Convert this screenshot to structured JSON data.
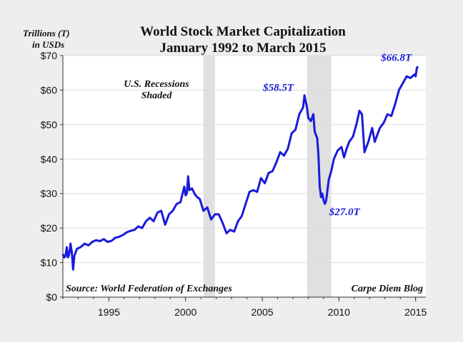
{
  "chart_data": {
    "type": "line",
    "title": "World Stock Market Capitalization",
    "subtitle": "January 1992 to March 2015",
    "ylabel_line1": "Trillions (T)",
    "ylabel_line2": "in USDs",
    "xlabel": "",
    "xlim": [
      "1992-01",
      "2015-09"
    ],
    "ylim": [
      0,
      70
    ],
    "y_ticks": [
      0,
      10,
      20,
      30,
      40,
      50,
      60,
      70
    ],
    "y_tick_labels": [
      "$0",
      "$10",
      "$20",
      "$30",
      "$40",
      "$50",
      "$60",
      "$70"
    ],
    "x_ticks": [
      1995,
      2000,
      2005,
      2010,
      2015
    ],
    "x_tick_labels": [
      "1995",
      "2000",
      "2005",
      "2010",
      "2015"
    ],
    "grid": "horizontal",
    "line_color": "#1a1adc",
    "recession_color": "#e0e0e0",
    "recessions": [
      {
        "start": "2001-03",
        "end": "2001-11"
      },
      {
        "start": "2007-12",
        "end": "2009-06"
      }
    ],
    "recession_label_line1": "U.S. Recessions",
    "recession_label_line2": "Shaded",
    "source_note": "Source: World Federation of Exchanges",
    "credit_note": "Carpe Diem Blog",
    "annotations": [
      {
        "label": "$58.5T",
        "x": "2007-10",
        "y": 58.5
      },
      {
        "label": "$27.0T",
        "x": "2009-02",
        "y": 27.0
      },
      {
        "label": "$66.8T",
        "x": "2015-03",
        "y": 66.8
      }
    ],
    "series": [
      {
        "points": [
          [
            "1992-01",
            12.5
          ],
          [
            "1992-02",
            11.5
          ],
          [
            "1992-03",
            11.8
          ],
          [
            "1992-04",
            14.5
          ],
          [
            "1992-05",
            11.5
          ],
          [
            "1992-06",
            12.5
          ],
          [
            "1992-07",
            15.5
          ],
          [
            "1992-08",
            13.0
          ],
          [
            "1992-09",
            8.0
          ],
          [
            "1992-10",
            12.0
          ],
          [
            "1992-11",
            13.0
          ],
          [
            "1992-12",
            14.0
          ],
          [
            "1993-03",
            14.5
          ],
          [
            "1993-06",
            15.5
          ],
          [
            "1993-09",
            15.0
          ],
          [
            "1993-12",
            16.0
          ],
          [
            "1994-03",
            16.5
          ],
          [
            "1994-06",
            16.2
          ],
          [
            "1994-09",
            16.8
          ],
          [
            "1994-12",
            16.0
          ],
          [
            "1995-03",
            16.3
          ],
          [
            "1995-06",
            17.2
          ],
          [
            "1995-09",
            17.5
          ],
          [
            "1995-12",
            18.0
          ],
          [
            "1996-03",
            18.8
          ],
          [
            "1996-06",
            19.2
          ],
          [
            "1996-09",
            19.5
          ],
          [
            "1996-12",
            20.5
          ],
          [
            "1997-03",
            20.0
          ],
          [
            "1997-06",
            22.0
          ],
          [
            "1997-09",
            23.0
          ],
          [
            "1997-12",
            22.0
          ],
          [
            "1998-03",
            24.5
          ],
          [
            "1998-06",
            25.0
          ],
          [
            "1998-09",
            21.0
          ],
          [
            "1998-12",
            24.0
          ],
          [
            "1999-03",
            25.0
          ],
          [
            "1999-06",
            27.0
          ],
          [
            "1999-09",
            27.5
          ],
          [
            "1999-12",
            32.0
          ],
          [
            "2000-01",
            29.5
          ],
          [
            "2000-02",
            30.0
          ],
          [
            "2000-03",
            35.0
          ],
          [
            "2000-04",
            31.0
          ],
          [
            "2000-06",
            31.5
          ],
          [
            "2000-08",
            30.0
          ],
          [
            "2000-10",
            29.0
          ],
          [
            "2000-12",
            28.5
          ],
          [
            "2001-03",
            25.0
          ],
          [
            "2001-06",
            26.0
          ],
          [
            "2001-09",
            22.5
          ],
          [
            "2001-12",
            24.0
          ],
          [
            "2002-03",
            24.0
          ],
          [
            "2002-06",
            21.5
          ],
          [
            "2002-09",
            18.5
          ],
          [
            "2002-12",
            19.5
          ],
          [
            "2003-03",
            19.0
          ],
          [
            "2003-06",
            22.0
          ],
          [
            "2003-09",
            23.5
          ],
          [
            "2003-12",
            27.0
          ],
          [
            "2004-03",
            30.5
          ],
          [
            "2004-06",
            31.0
          ],
          [
            "2004-09",
            30.5
          ],
          [
            "2004-12",
            34.5
          ],
          [
            "2005-03",
            33.0
          ],
          [
            "2005-06",
            36.0
          ],
          [
            "2005-09",
            36.5
          ],
          [
            "2005-12",
            39.0
          ],
          [
            "2006-03",
            42.0
          ],
          [
            "2006-06",
            41.0
          ],
          [
            "2006-09",
            43.0
          ],
          [
            "2006-12",
            47.5
          ],
          [
            "2007-03",
            48.5
          ],
          [
            "2007-06",
            53.0
          ],
          [
            "2007-09",
            55.0
          ],
          [
            "2007-10",
            58.5
          ],
          [
            "2007-12",
            55.0
          ],
          [
            "2008-01",
            52.0
          ],
          [
            "2008-03",
            51.0
          ],
          [
            "2008-05",
            53.0
          ],
          [
            "2008-06",
            48.0
          ],
          [
            "2008-08",
            46.0
          ],
          [
            "2008-09",
            41.0
          ],
          [
            "2008-10",
            32.0
          ],
          [
            "2008-11",
            29.0
          ],
          [
            "2008-12",
            30.0
          ],
          [
            "2009-01",
            28.0
          ],
          [
            "2009-02",
            27.0
          ],
          [
            "2009-03",
            28.0
          ],
          [
            "2009-05",
            34.0
          ],
          [
            "2009-07",
            36.5
          ],
          [
            "2009-09",
            40.0
          ],
          [
            "2009-12",
            42.5
          ],
          [
            "2010-03",
            43.5
          ],
          [
            "2010-05",
            40.5
          ],
          [
            "2010-07",
            43.0
          ],
          [
            "2010-09",
            45.0
          ],
          [
            "2010-12",
            46.5
          ],
          [
            "2011-03",
            50.5
          ],
          [
            "2011-05",
            54.0
          ],
          [
            "2011-07",
            53.0
          ],
          [
            "2011-09",
            42.0
          ],
          [
            "2011-12",
            45.0
          ],
          [
            "2012-03",
            49.0
          ],
          [
            "2012-05",
            45.0
          ],
          [
            "2012-07",
            47.0
          ],
          [
            "2012-09",
            49.0
          ],
          [
            "2012-12",
            50.5
          ],
          [
            "2013-03",
            53.0
          ],
          [
            "2013-06",
            52.5
          ],
          [
            "2013-09",
            56.0
          ],
          [
            "2013-12",
            60.0
          ],
          [
            "2014-03",
            62.0
          ],
          [
            "2014-06",
            64.0
          ],
          [
            "2014-09",
            63.5
          ],
          [
            "2014-12",
            64.5
          ],
          [
            "2015-01",
            64.0
          ],
          [
            "2015-02",
            66.5
          ],
          [
            "2015-03",
            66.8
          ]
        ]
      }
    ]
  }
}
